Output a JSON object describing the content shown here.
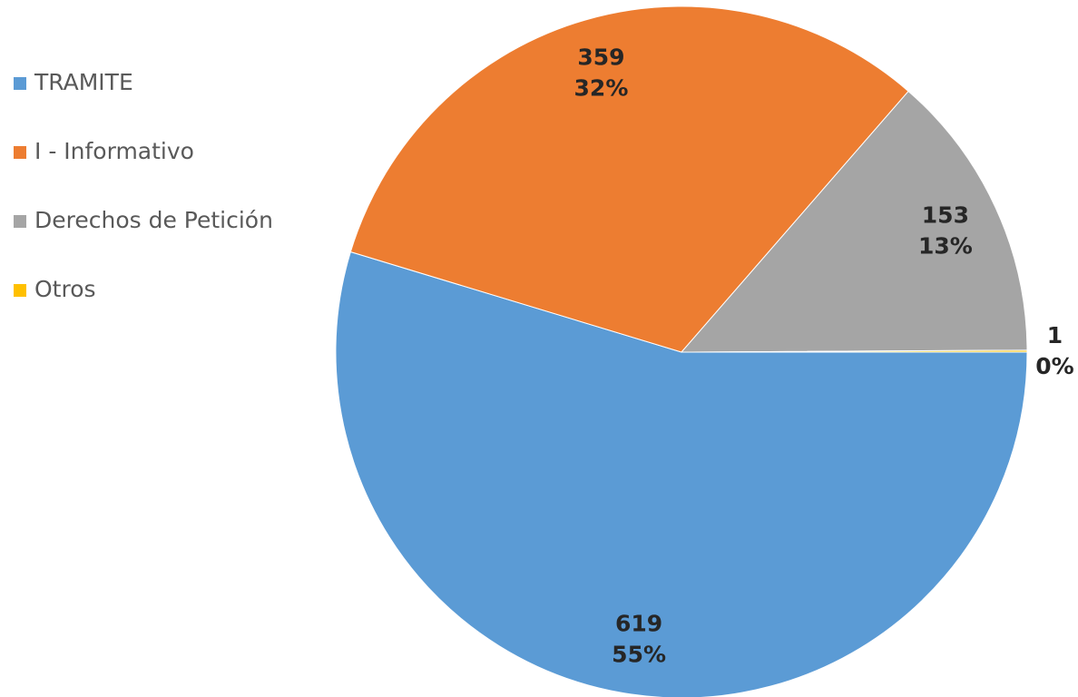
{
  "chart_data": {
    "type": "pie",
    "categories": [
      "TRAMITE",
      "I - Informativo",
      "Derechos de Petición",
      "Otros"
    ],
    "values": [
      619,
      359,
      153,
      1
    ],
    "percentages": [
      55,
      32,
      13,
      0
    ],
    "percentage_labels": [
      "55%",
      "32%",
      "13%",
      "0%"
    ],
    "colors": [
      "#5b9bd5",
      "#ed7d31",
      "#a5a5a5",
      "#ffc000"
    ],
    "legend": "left"
  }
}
